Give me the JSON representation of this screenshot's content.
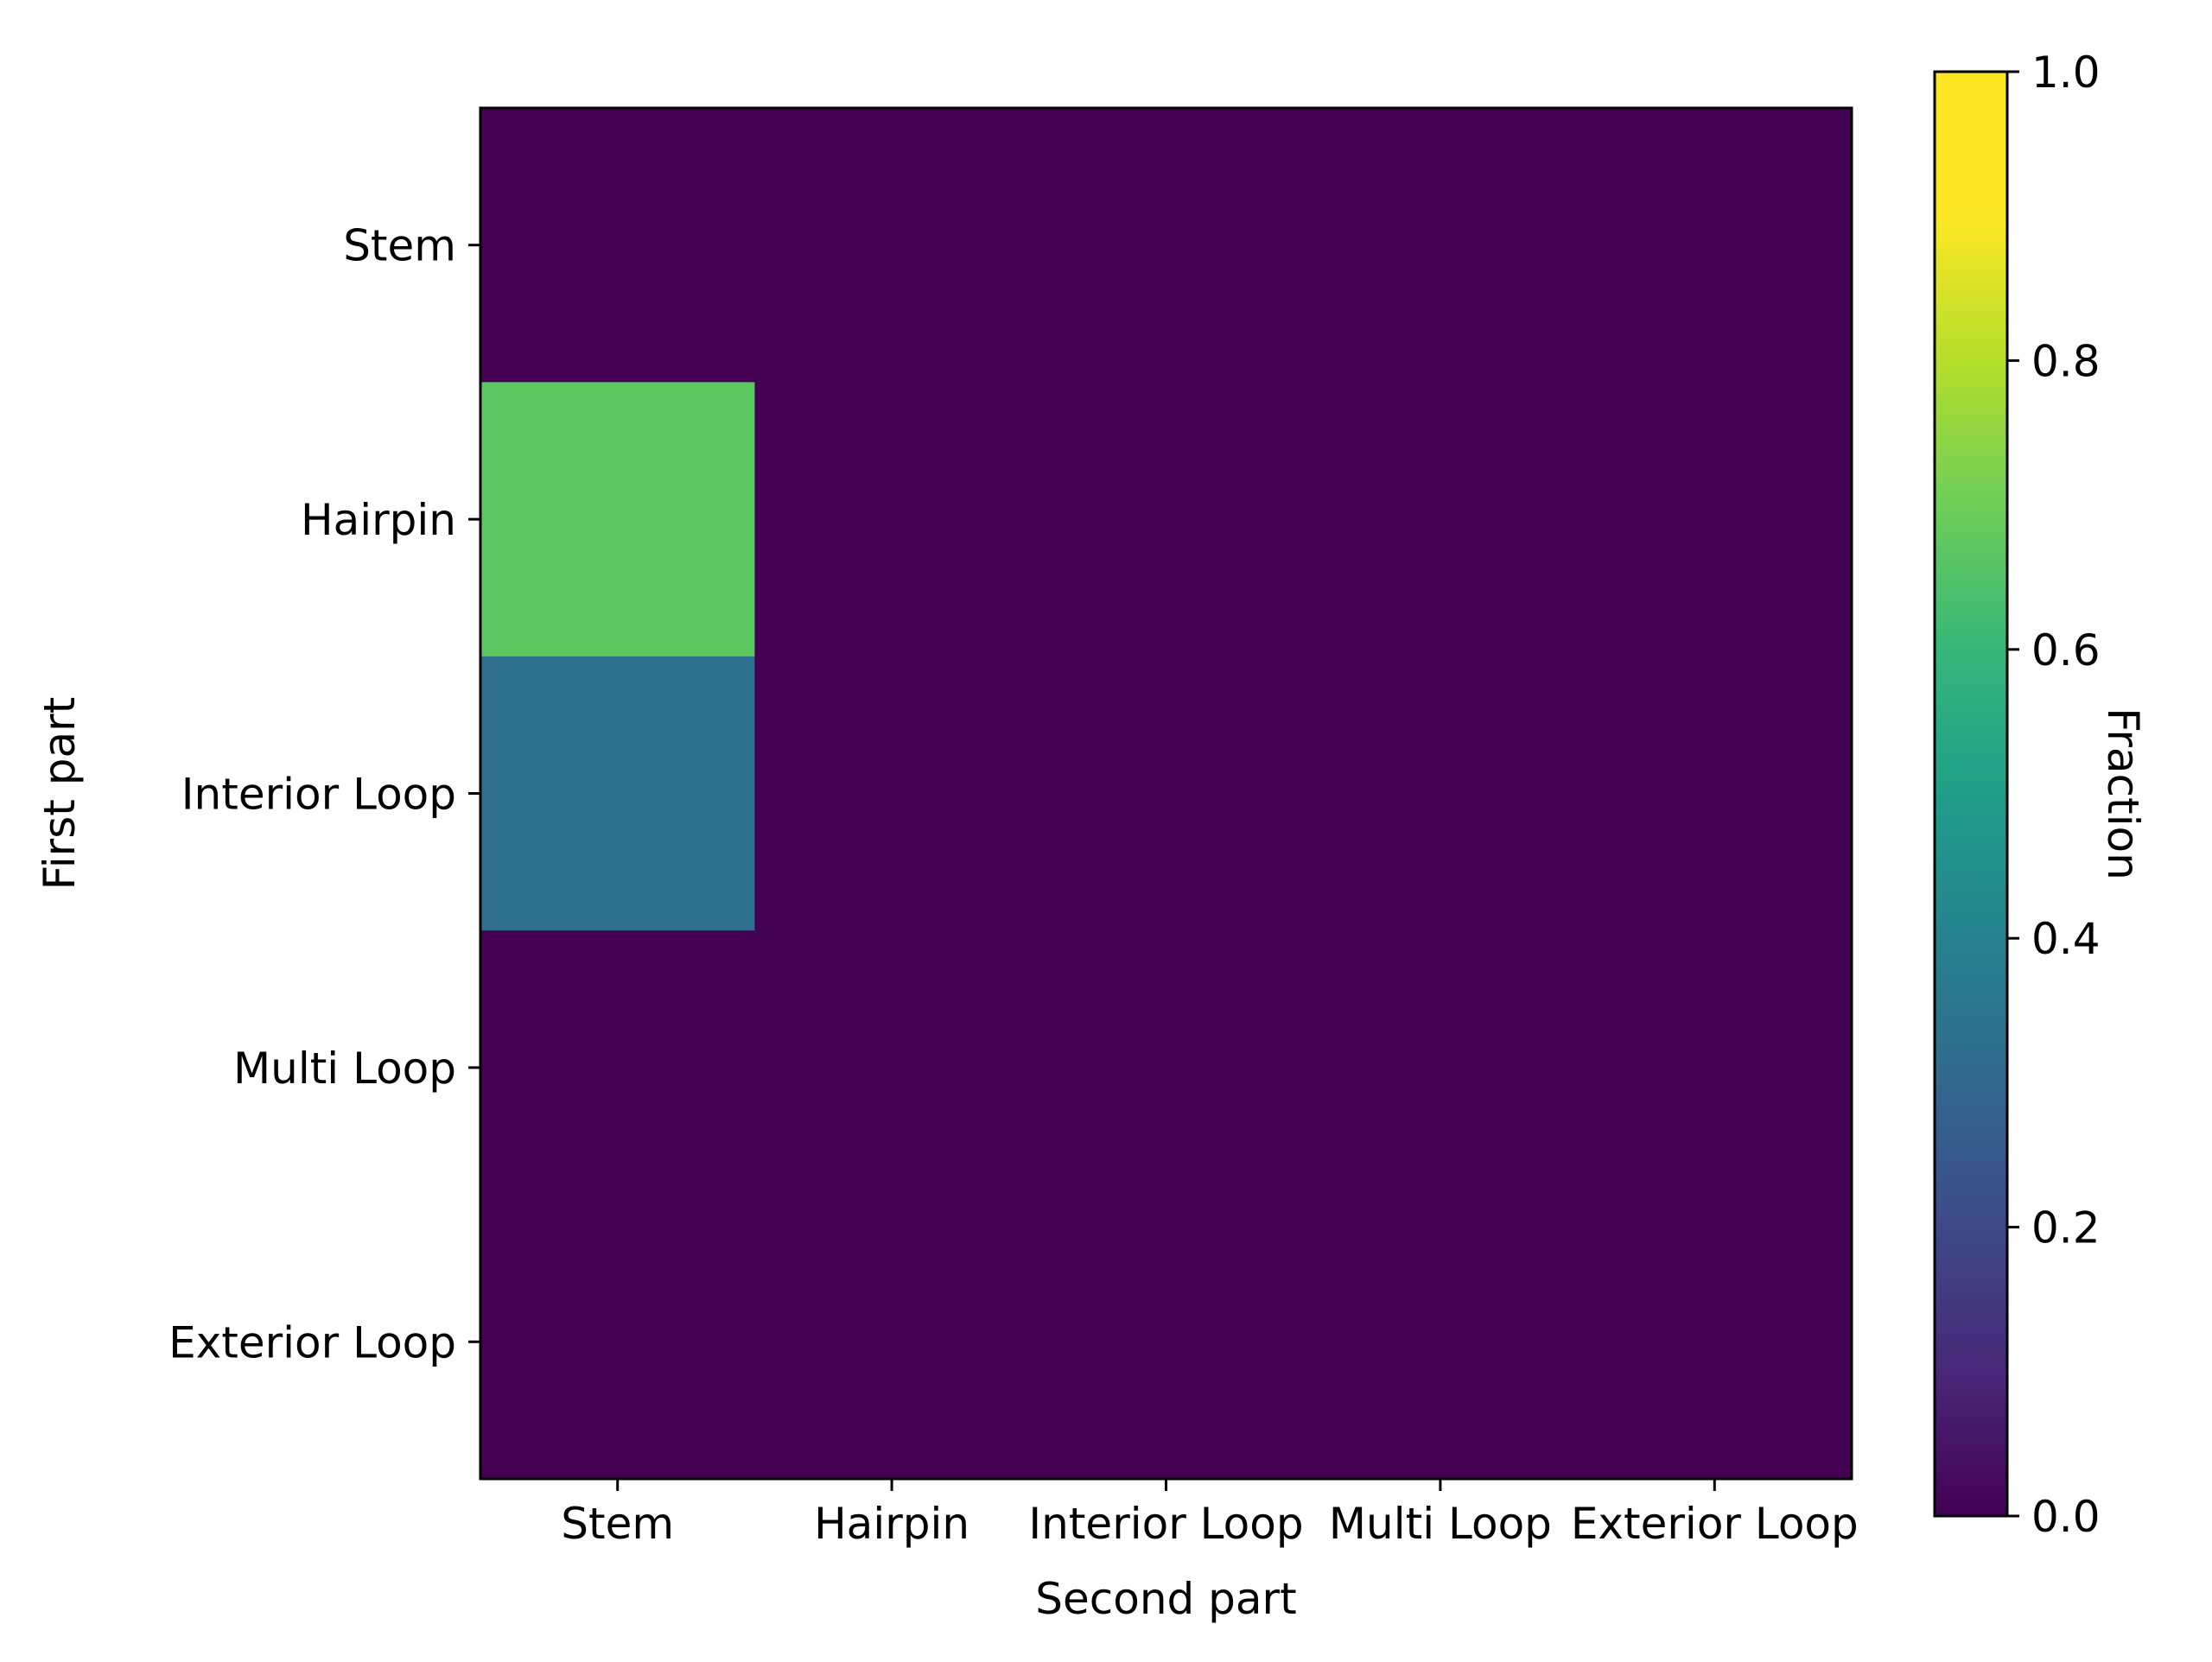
{
  "chart_data": {
    "type": "heatmap",
    "title": "",
    "xlabel": "Second part",
    "ylabel": "First part",
    "x_categories": [
      "Stem",
      "Hairpin",
      "Interior Loop",
      "Multi Loop",
      "Exterior Loop"
    ],
    "y_categories": [
      "Stem",
      "Hairpin",
      "Interior Loop",
      "Multi Loop",
      "Exterior Loop"
    ],
    "values": [
      [
        0.0,
        0.0,
        0.0,
        0.0,
        0.0
      ],
      [
        0.67,
        0.0,
        0.0,
        0.0,
        0.0
      ],
      [
        0.33,
        0.0,
        0.0,
        0.0,
        0.0
      ],
      [
        0.0,
        0.0,
        0.0,
        0.0,
        0.0
      ],
      [
        0.0,
        0.0,
        0.0,
        0.0,
        0.0
      ]
    ],
    "colormap": "viridis",
    "colorbar": {
      "label": "Fraction",
      "range": [
        0.0,
        1.0
      ],
      "ticks": [
        0.0,
        0.2,
        0.4,
        0.6,
        0.8,
        1.0
      ],
      "tick_labels": [
        "0.0",
        "0.2",
        "0.4",
        "0.6",
        "0.8",
        "1.0"
      ]
    },
    "grid": false,
    "legend": "none"
  }
}
